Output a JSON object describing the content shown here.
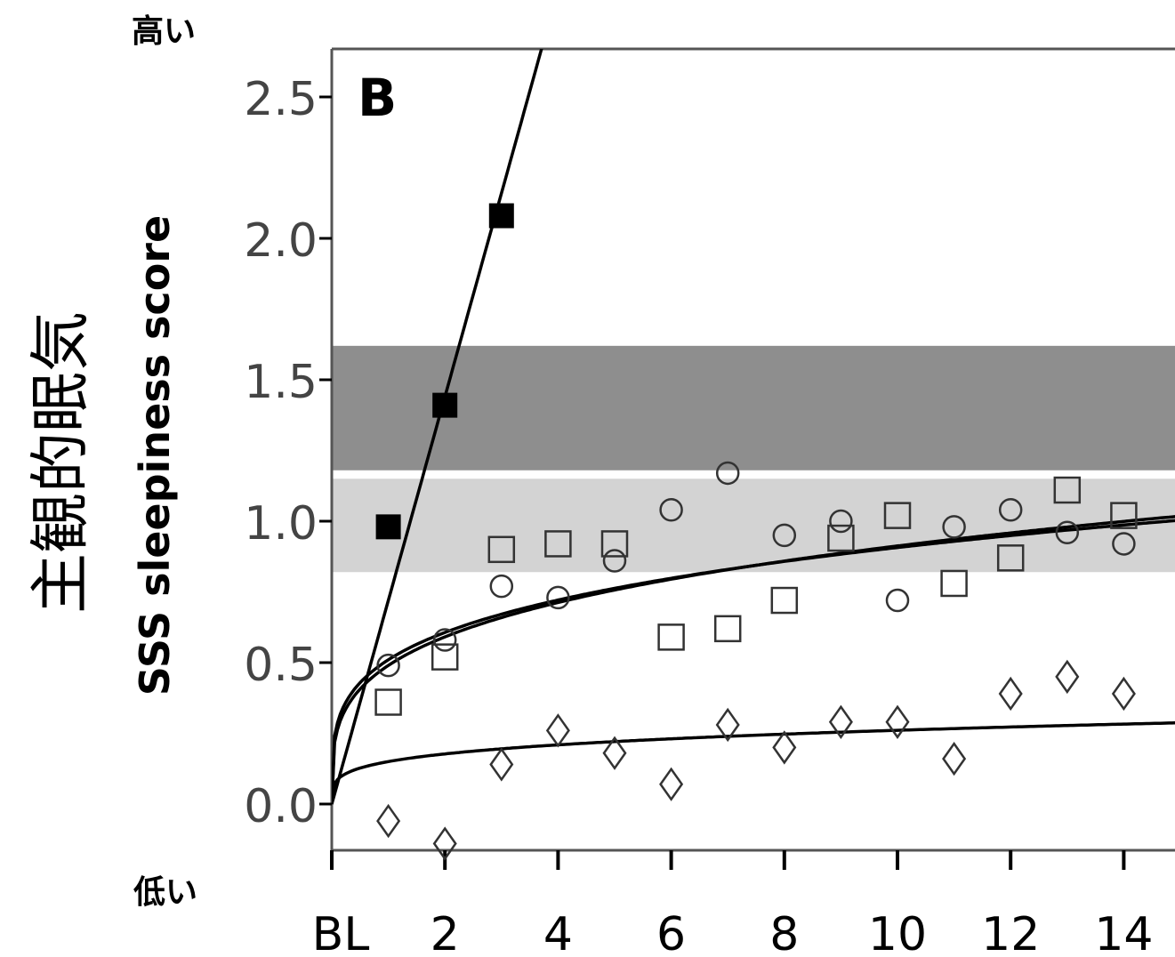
{
  "annotations": {
    "high": "高い",
    "low": "低い",
    "jp_ylabel": "主観的眠気"
  },
  "chart_data": {
    "type": "scatter",
    "panel_label": "B",
    "title": "",
    "xlabel": "",
    "ylabel": "SSS sleepiness score",
    "xlim": [
      0,
      15
    ],
    "ylim": [
      -0.17,
      2.65
    ],
    "x_ticks": [
      0,
      2,
      4,
      6,
      8,
      10,
      12,
      14
    ],
    "x_tick_labels": [
      "BL",
      "2",
      "4",
      "6",
      "8",
      "10",
      "12",
      "14"
    ],
    "y_ticks": [
      0.0,
      0.5,
      1.0,
      1.5,
      2.0,
      2.5
    ],
    "y_tick_labels": [
      "0.0",
      "0.5",
      "1.0",
      "1.5",
      "2.0",
      "2.5"
    ],
    "bands": [
      {
        "y_from": 1.18,
        "y_to": 1.62,
        "color": "#8e8e8e"
      },
      {
        "y_from": 0.82,
        "y_to": 1.15,
        "color": "#d3d3d3"
      }
    ],
    "series": [
      {
        "marker": "filled-square",
        "color": "#000000",
        "x": [
          1,
          2,
          3
        ],
        "y": [
          0.98,
          1.41,
          2.08
        ],
        "fit": {
          "kind": "linear",
          "intercept": 0.0,
          "slope": 0.72
        }
      },
      {
        "marker": "open-circle",
        "color": "#000000",
        "x": [
          1,
          2,
          3,
          4,
          5,
          6,
          7,
          8,
          9,
          10,
          11,
          12,
          13,
          14
        ],
        "y": [
          0.49,
          0.58,
          0.77,
          0.73,
          0.86,
          1.04,
          1.17,
          0.95,
          1.0,
          0.72,
          0.98,
          1.04,
          0.96,
          0.92
        ],
        "fit": {
          "kind": "power",
          "a": 0.51,
          "b": 0.25
        }
      },
      {
        "marker": "open-square",
        "color": "#000000",
        "x": [
          1,
          2,
          3,
          4,
          5,
          6,
          7,
          8,
          9,
          10,
          11,
          12,
          13,
          14
        ],
        "y": [
          0.36,
          0.52,
          0.9,
          0.92,
          0.92,
          0.59,
          0.62,
          0.72,
          0.94,
          1.02,
          0.78,
          0.87,
          1.11,
          1.02
        ],
        "fit": {
          "kind": "power",
          "a": 0.49,
          "b": 0.27
        }
      },
      {
        "marker": "open-diamond",
        "color": "#000000",
        "x": [
          1,
          2,
          3,
          4,
          5,
          6,
          7,
          8,
          9,
          10,
          11,
          12,
          13,
          14
        ],
        "y": [
          -0.06,
          -0.14,
          0.14,
          0.26,
          0.18,
          0.07,
          0.28,
          0.2,
          0.29,
          0.29,
          0.16,
          0.39,
          0.45,
          0.39
        ],
        "fit": {
          "kind": "power",
          "a": 0.15,
          "b": 0.24
        }
      }
    ]
  }
}
